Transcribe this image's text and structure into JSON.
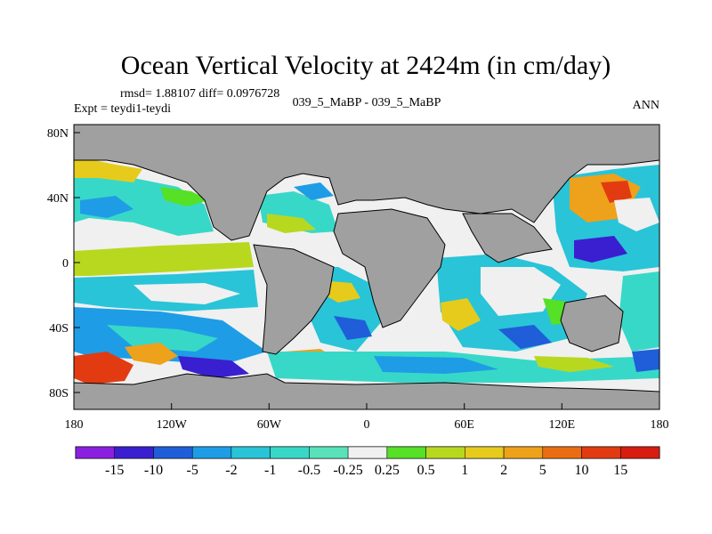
{
  "chart_data": {
    "type": "heatmap",
    "title": "Ocean Vertical Velocity at 2424m (in cm/day)",
    "stats": "rmsd= 1.88107 diff= 0.0976728",
    "left_label": "Expt = teydi1-teydi",
    "center_label": "039_5_MaBP - 039_5_MaBP",
    "right_label": "ANN",
    "x_ticks": [
      "180",
      "120W",
      "60W",
      "0",
      "60E",
      "120E",
      "180"
    ],
    "y_ticks": [
      "80N",
      "40N",
      "0",
      "40S",
      "80S"
    ],
    "xlim": [
      -180,
      180
    ],
    "ylim": [
      -90,
      90
    ],
    "colorbar": {
      "levels": [
        "-15",
        "-10",
        "-5",
        "-2",
        "-1",
        "-0.5",
        "-0.25",
        "0.25",
        "0.5",
        "1",
        "2",
        "5",
        "10",
        "15"
      ],
      "colors": [
        "#8a1fe0",
        "#3a1fd0",
        "#1f5ed8",
        "#1e9de6",
        "#29c4d8",
        "#38d8c8",
        "#59e2b9",
        "#f0f0f0",
        "#56e026",
        "#b8d81f",
        "#e6cb1d",
        "#eea11b",
        "#ea6d14",
        "#e23b12",
        "#d81c10"
      ]
    }
  }
}
